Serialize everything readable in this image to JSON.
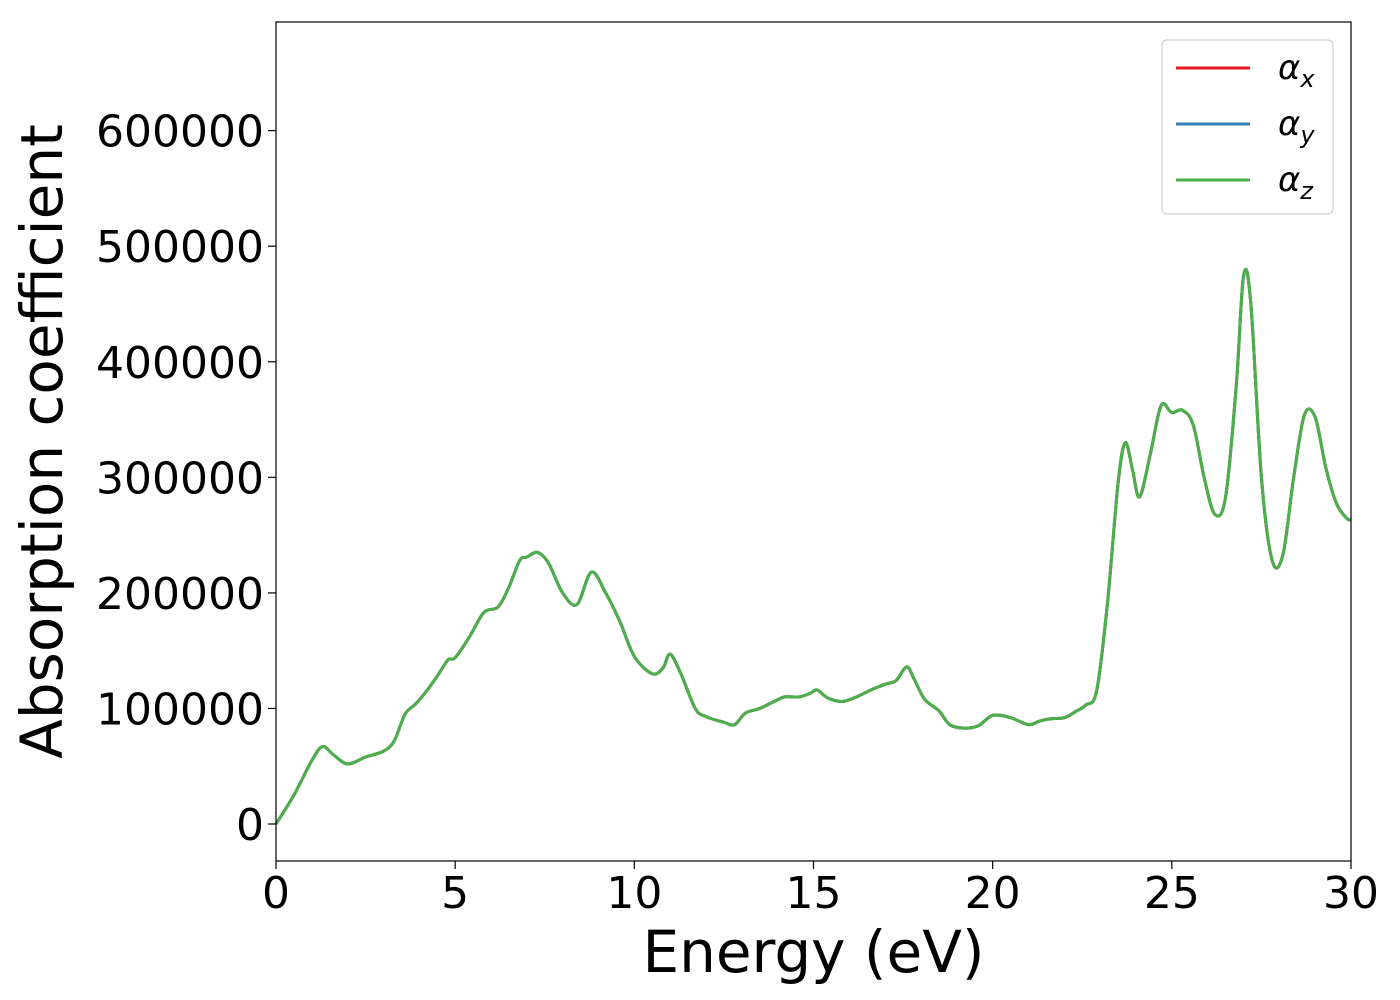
{
  "chart_data": {
    "type": "line",
    "xlabel": "Energy (eV)",
    "ylabel": "Absorption coefficient",
    "xlim": [
      0,
      30
    ],
    "ylim": [
      -32000,
      694000
    ],
    "xticks": [
      "0",
      "5",
      "10",
      "15",
      "20",
      "25",
      "30"
    ],
    "yticks": [
      "0",
      "100000",
      "200000",
      "300000",
      "400000",
      "500000",
      "600000"
    ],
    "grid": false,
    "legend_position": "top-right",
    "series": [
      {
        "name": "α",
        "subscript": "x",
        "color": "#e41a1c"
      },
      {
        "name": "α",
        "subscript": "y",
        "color": "#377eb8"
      },
      {
        "name": "α",
        "subscript": "z",
        "color": "#4daf4a"
      }
    ],
    "x": [
      0,
      0.5,
      1.0,
      1.3,
      1.6,
      2.0,
      2.5,
      3.0,
      3.3,
      3.6,
      3.9,
      4.2,
      4.5,
      4.8,
      5.0,
      5.4,
      5.8,
      6.2,
      6.5,
      6.8,
      7.0,
      7.3,
      7.6,
      8.0,
      8.4,
      8.8,
      9.2,
      9.6,
      10.0,
      10.5,
      10.8,
      11.0,
      11.3,
      11.7,
      12.0,
      12.5,
      12.8,
      13.1,
      13.5,
      13.9,
      14.2,
      14.6,
      14.9,
      15.1,
      15.4,
      15.8,
      16.2,
      16.6,
      17.0,
      17.3,
      17.6,
      17.8,
      18.1,
      18.5,
      18.8,
      19.2,
      19.6,
      20.0,
      20.5,
      21.0,
      21.3,
      21.6,
      22.0,
      22.3,
      22.6,
      22.9,
      23.2,
      23.5,
      23.7,
      23.9,
      24.1,
      24.4,
      24.7,
      25.0,
      25.3,
      25.6,
      25.9,
      26.2,
      26.5,
      26.8,
      27.0,
      27.2,
      27.5,
      27.8,
      28.1,
      28.4,
      28.7,
      29.0,
      29.3,
      29.6,
      29.9,
      30.0
    ],
    "values": [
      0,
      25000,
      55000,
      67000,
      60000,
      52000,
      58000,
      63000,
      72000,
      95000,
      104000,
      115000,
      128000,
      142000,
      144000,
      162000,
      183000,
      188000,
      205000,
      228000,
      231000,
      235000,
      226000,
      200000,
      190000,
      218000,
      200000,
      175000,
      145000,
      130000,
      135000,
      147000,
      130000,
      100000,
      93000,
      88000,
      86000,
      96000,
      100000,
      106000,
      110000,
      110000,
      113000,
      116000,
      109000,
      106000,
      110000,
      116000,
      121000,
      124000,
      136000,
      126000,
      108000,
      98000,
      86000,
      83000,
      85000,
      94000,
      92000,
      86000,
      89000,
      91000,
      92000,
      97000,
      103000,
      115000,
      190000,
      295000,
      330000,
      307000,
      283000,
      320000,
      362000,
      356000,
      358000,
      345000,
      300000,
      268000,
      283000,
      380000,
      474000,
      452000,
      300000,
      228000,
      233000,
      300000,
      354000,
      352000,
      308000,
      277000,
      264000,
      264000
    ]
  }
}
